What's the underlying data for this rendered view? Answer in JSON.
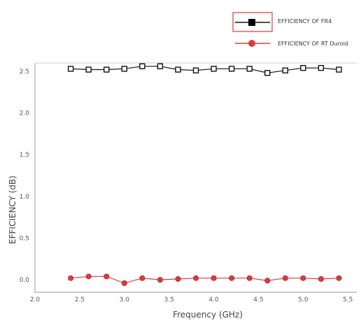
{
  "chart_data": {
    "type": "line",
    "title": "",
    "xlabel": "Frequency (GHz)",
    "ylabel": "EFFICIENCY (dB)",
    "xlim": [
      2.0,
      5.6
    ],
    "ylim": [
      -0.15,
      2.6
    ],
    "xticks": [
      "2.0",
      "2.5",
      "3.0",
      "3.5",
      "4.0",
      "4.5",
      "5.0",
      "5.5"
    ],
    "yticks": [
      "0.0",
      "0.5",
      "1.0",
      "1.5",
      "2.0",
      "2.5"
    ],
    "x": [
      2.4,
      2.6,
      2.8,
      3.0,
      3.2,
      3.4,
      3.6,
      3.8,
      4.0,
      4.2,
      4.4,
      4.6,
      4.8,
      5.0,
      5.2,
      5.4
    ],
    "series": [
      {
        "name": "EFFICIENCY OF FR4",
        "color": "#111111",
        "marker": "square",
        "values": [
          2.53,
          2.52,
          2.52,
          2.53,
          2.56,
          2.56,
          2.52,
          2.51,
          2.53,
          2.53,
          2.53,
          2.48,
          2.51,
          2.54,
          2.54,
          2.52
        ]
      },
      {
        "name": "EFFICIENCY OF RT Duroid",
        "color": "#e03a3a",
        "marker": "circle",
        "values": [
          0.02,
          0.04,
          0.04,
          -0.04,
          0.02,
          0.0,
          0.01,
          0.02,
          0.02,
          0.02,
          0.02,
          -0.01,
          0.02,
          0.02,
          0.01,
          0.02
        ]
      }
    ],
    "legend": "top-right",
    "grid": false
  }
}
